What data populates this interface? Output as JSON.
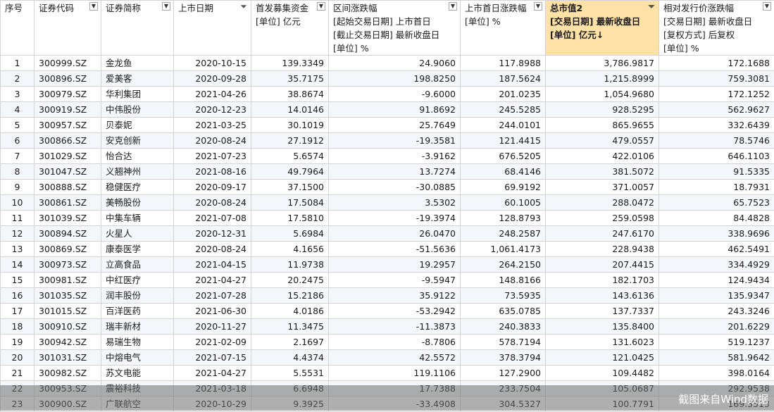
{
  "columns": {
    "idx": {
      "lines": [
        "序号"
      ]
    },
    "code": {
      "lines": [
        "证券代码"
      ]
    },
    "name": {
      "lines": [
        "证券简称"
      ]
    },
    "date": {
      "lines": [
        "上市日期"
      ]
    },
    "raise": {
      "lines": [
        "首发募集资金",
        "[单位] 亿元"
      ]
    },
    "range": {
      "lines": [
        "区间涨跌幅",
        "[起始交易日期] 上市首日",
        "[截止交易日期] 最新收盘日",
        "[单位] %"
      ]
    },
    "firstday": {
      "lines": [
        "上市首日涨跌幅",
        "[单位] %"
      ]
    },
    "mktcap": {
      "lines": [
        "总市值2",
        "[交易日期] 最新收盘日",
        "[单位] 亿元↓"
      ]
    },
    "relative": {
      "lines": [
        "相对发行价涨跌幅",
        "[交易日期] 最新收盘日",
        "[复权方式] 后复权",
        "[单位] %"
      ]
    }
  },
  "rows": [
    {
      "idx": "1",
      "code": "300999.SZ",
      "name": "金龙鱼",
      "date": "2020-10-15",
      "raise": "139.3349",
      "range": "24.9060",
      "firstday": "117.8988",
      "mktcap": "3,786.9817",
      "relative": "172.1688"
    },
    {
      "idx": "2",
      "code": "300896.SZ",
      "name": "爱美客",
      "date": "2020-09-28",
      "raise": "35.7175",
      "range": "198.8250",
      "firstday": "187.5624",
      "mktcap": "1,215.8999",
      "relative": "759.3081"
    },
    {
      "idx": "3",
      "code": "300979.SZ",
      "name": "华利集团",
      "date": "2021-04-26",
      "raise": "38.8674",
      "range": "-9.6000",
      "firstday": "201.0235",
      "mktcap": "1,054.9680",
      "relative": "172.1252"
    },
    {
      "idx": "4",
      "code": "300919.SZ",
      "name": "中伟股份",
      "date": "2020-12-23",
      "raise": "14.0146",
      "range": "91.8692",
      "firstday": "245.5285",
      "mktcap": "928.5295",
      "relative": "562.9627"
    },
    {
      "idx": "5",
      "code": "300957.SZ",
      "name": "贝泰妮",
      "date": "2021-03-25",
      "raise": "30.1019",
      "range": "25.7649",
      "firstday": "244.0101",
      "mktcap": "865.9655",
      "relative": "332.6439"
    },
    {
      "idx": "6",
      "code": "300866.SZ",
      "name": "安克创新",
      "date": "2020-08-24",
      "raise": "27.1912",
      "range": "-19.3581",
      "firstday": "121.4415",
      "mktcap": "479.0557",
      "relative": "78.5746"
    },
    {
      "idx": "7",
      "code": "301029.SZ",
      "name": "怡合达",
      "date": "2021-07-23",
      "raise": "5.6574",
      "range": "-3.9162",
      "firstday": "676.5205",
      "mktcap": "422.0106",
      "relative": "646.1103"
    },
    {
      "idx": "8",
      "code": "301047.SZ",
      "name": "义翘神州",
      "date": "2021-08-16",
      "raise": "49.7964",
      "range": "13.7274",
      "firstday": "68.4146",
      "mktcap": "381.5072",
      "relative": "91.5335"
    },
    {
      "idx": "9",
      "code": "300888.SZ",
      "name": "稳健医疗",
      "date": "2020-09-17",
      "raise": "37.1500",
      "range": "-30.0885",
      "firstday": "69.9192",
      "mktcap": "371.0057",
      "relative": "18.7931"
    },
    {
      "idx": "10",
      "code": "300861.SZ",
      "name": "美畅股份",
      "date": "2020-08-24",
      "raise": "17.5084",
      "range": "3.5302",
      "firstday": "60.1005",
      "mktcap": "288.0472",
      "relative": "65.7523"
    },
    {
      "idx": "11",
      "code": "301039.SZ",
      "name": "中集车辆",
      "date": "2021-07-08",
      "raise": "17.5810",
      "range": "-19.3974",
      "firstday": "128.8793",
      "mktcap": "259.0598",
      "relative": "84.4828"
    },
    {
      "idx": "12",
      "code": "300894.SZ",
      "name": "火星人",
      "date": "2020-12-31",
      "raise": "5.6984",
      "range": "26.0470",
      "firstday": "248.2587",
      "mktcap": "247.6170",
      "relative": "338.9696"
    },
    {
      "idx": "13",
      "code": "300869.SZ",
      "name": "康泰医学",
      "date": "2020-08-24",
      "raise": "4.1656",
      "range": "-51.5636",
      "firstday": "1,061.4173",
      "mktcap": "228.9438",
      "relative": "462.5491"
    },
    {
      "idx": "14",
      "code": "300973.SZ",
      "name": "立高食品",
      "date": "2021-04-15",
      "raise": "11.9738",
      "range": "19.2957",
      "firstday": "264.2150",
      "mktcap": "207.4415",
      "relative": "334.4929"
    },
    {
      "idx": "15",
      "code": "300981.SZ",
      "name": "中红医疗",
      "date": "2021-04-27",
      "raise": "20.2475",
      "range": "-9.5947",
      "firstday": "148.8166",
      "mktcap": "182.1703",
      "relative": "124.9434"
    },
    {
      "idx": "16",
      "code": "301035.SZ",
      "name": "润丰股份",
      "date": "2021-07-28",
      "raise": "15.2186",
      "range": "35.9122",
      "firstday": "73.5935",
      "mktcap": "143.6136",
      "relative": "135.9347"
    },
    {
      "idx": "17",
      "code": "301015.SZ",
      "name": "百洋医药",
      "date": "2021-06-30",
      "raise": "4.0186",
      "range": "-53.2942",
      "firstday": "635.0785",
      "mktcap": "137.7337",
      "relative": "243.3246"
    },
    {
      "idx": "18",
      "code": "300910.SZ",
      "name": "瑞丰新材",
      "date": "2020-11-27",
      "raise": "11.3475",
      "range": "-11.3873",
      "firstday": "240.3833",
      "mktcap": "135.8400",
      "relative": "201.6229"
    },
    {
      "idx": "19",
      "code": "300942.SZ",
      "name": "易瑞生物",
      "date": "2021-02-09",
      "raise": "2.1697",
      "range": "-8.7806",
      "firstday": "578.7194",
      "mktcap": "131.6023",
      "relative": "519.1237"
    },
    {
      "idx": "20",
      "code": "301031.SZ",
      "name": "中熔电气",
      "date": "2021-07-15",
      "raise": "4.4374",
      "range": "42.5572",
      "firstday": "378.3794",
      "mktcap": "121.0425",
      "relative": "581.9642"
    },
    {
      "idx": "21",
      "code": "300982.SZ",
      "name": "苏文电能",
      "date": "2021-04-27",
      "raise": "5.5531",
      "range": "119.1106",
      "firstday": "127.2900",
      "mktcap": "109.4482",
      "relative": "398.0164"
    },
    {
      "idx": "22",
      "code": "300953.SZ",
      "name": "震裕科技",
      "date": "2021-03-18",
      "raise": "6.6948",
      "range": "17.7388",
      "firstday": "233.7504",
      "mktcap": "105.0687",
      "relative": "292.9538"
    },
    {
      "idx": "23",
      "code": "300900.SZ",
      "name": "广联航空",
      "date": "2020-10-29",
      "raise": "9.3925",
      "range": "-33.4908",
      "firstday": "304.5327",
      "mktcap": "100.7791",
      "relative": "169.3513"
    }
  ],
  "watermark": "截图来自Wind数据"
}
